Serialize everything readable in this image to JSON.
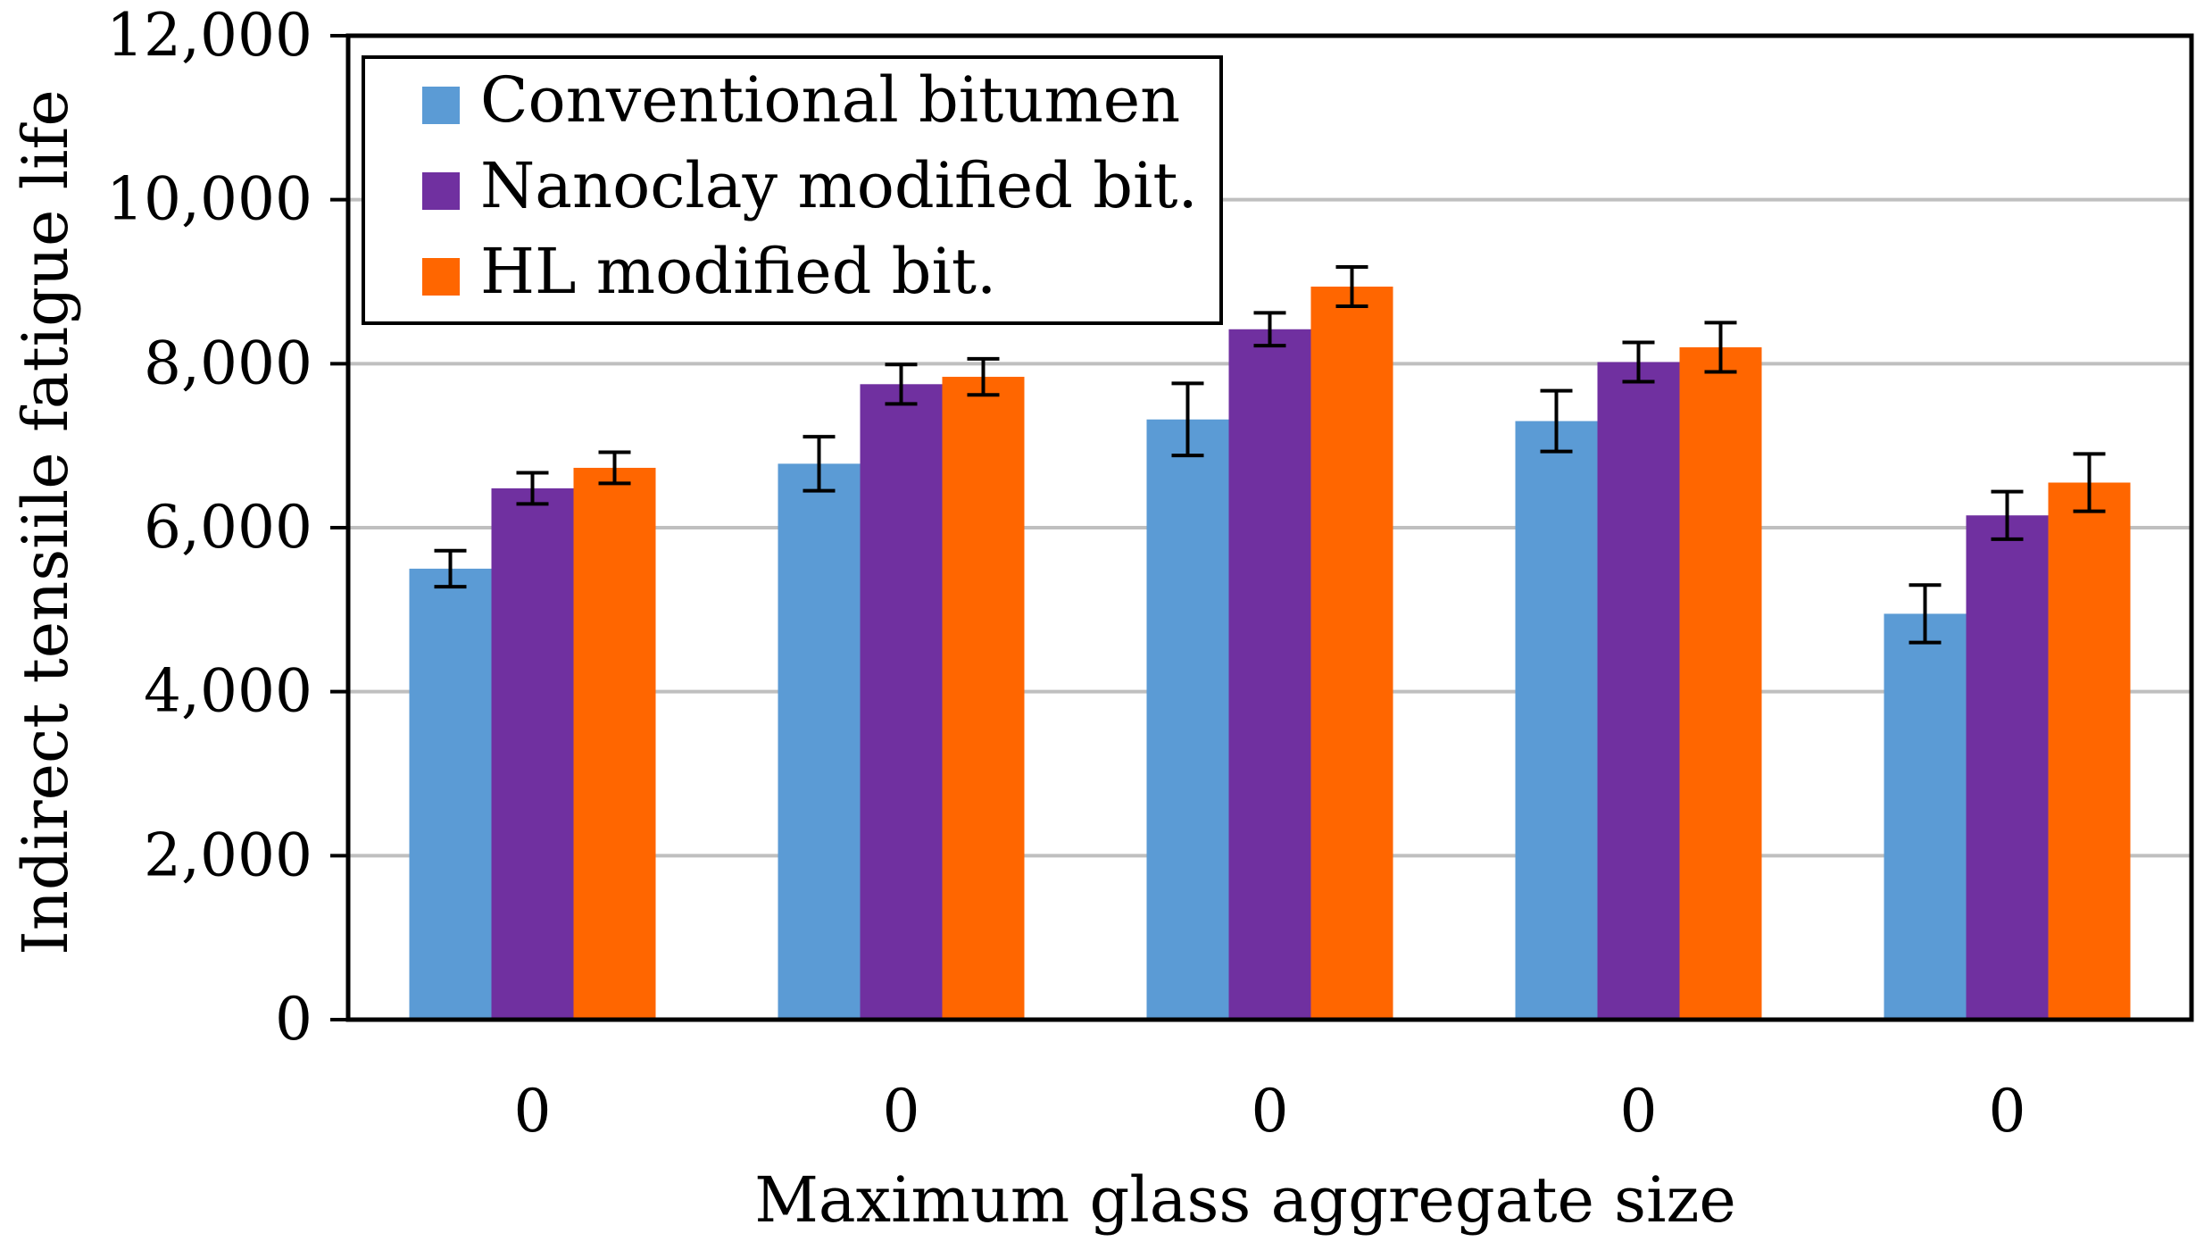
{
  "colors": {
    "conventional": "#5b9bd5",
    "nanoclay": "#7030a0",
    "hl": "#ff6600",
    "grid": "#bfbfbf",
    "axis": "#000000"
  },
  "chart_data": {
    "type": "bar",
    "title": "",
    "xlabel": "Maximum glass aggregate size",
    "ylabel": "Indirect tensiile fatigue life",
    "ylim": [
      0,
      12000
    ],
    "yticks": [
      0,
      2000,
      4000,
      6000,
      8000,
      10000,
      12000
    ],
    "ytick_labels": [
      "0",
      "2,000",
      "4,000",
      "6,000",
      "8,000",
      "10,000",
      "12,000"
    ],
    "grid": true,
    "legend_position": "top-left",
    "categories": [
      "0",
      "0",
      "0",
      "0",
      "0"
    ],
    "series": [
      {
        "name": "Conventional bitumen",
        "color_key": "conventional",
        "values": [
          5500,
          6780,
          7320,
          7300,
          4950
        ],
        "errors": [
          220,
          330,
          440,
          370,
          350
        ]
      },
      {
        "name": "Nanoclay modified bit.",
        "color_key": "nanoclay",
        "values": [
          6480,
          7750,
          8420,
          8020,
          6150
        ],
        "errors": [
          190,
          240,
          200,
          240,
          290
        ]
      },
      {
        "name": "HL modified bit.",
        "color_key": "hl",
        "values": [
          6730,
          7840,
          8940,
          8200,
          6550
        ],
        "errors": [
          190,
          220,
          240,
          300,
          350
        ]
      }
    ]
  }
}
